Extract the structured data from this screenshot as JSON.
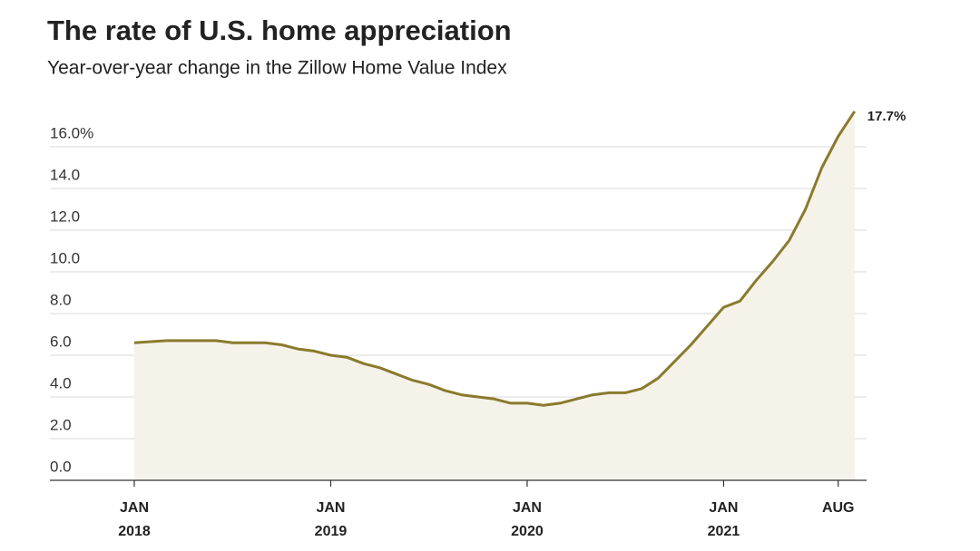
{
  "chart_data": {
    "type": "line",
    "title": "The rate of U.S. home appreciation",
    "subtitle": "Year-over-year change in the Zillow Home Value Index",
    "x": [
      "2018-01",
      "2018-02",
      "2018-03",
      "2018-04",
      "2018-05",
      "2018-06",
      "2018-07",
      "2018-08",
      "2018-09",
      "2018-10",
      "2018-11",
      "2018-12",
      "2019-01",
      "2019-02",
      "2019-03",
      "2019-04",
      "2019-05",
      "2019-06",
      "2019-07",
      "2019-08",
      "2019-09",
      "2019-10",
      "2019-11",
      "2019-12",
      "2020-01",
      "2020-02",
      "2020-03",
      "2020-04",
      "2020-05",
      "2020-06",
      "2020-07",
      "2020-08",
      "2020-09",
      "2020-10",
      "2020-11",
      "2020-12",
      "2021-01",
      "2021-02",
      "2021-03",
      "2021-04",
      "2021-05",
      "2021-06",
      "2021-07",
      "2021-08",
      "2021-09"
    ],
    "series": [
      {
        "name": "Zillow Home Value Index YoY",
        "color": "#8a7a2c",
        "values": [
          6.6,
          6.65,
          6.7,
          6.7,
          6.7,
          6.7,
          6.6,
          6.6,
          6.6,
          6.5,
          6.3,
          6.2,
          6.0,
          5.9,
          5.6,
          5.4,
          5.1,
          4.8,
          4.6,
          4.3,
          4.1,
          4.0,
          3.9,
          3.7,
          3.7,
          3.6,
          3.7,
          3.9,
          4.1,
          4.2,
          4.2,
          4.4,
          4.9,
          5.7,
          6.5,
          7.4,
          8.3,
          8.6,
          9.6,
          10.5,
          11.5,
          13.0,
          15.0,
          16.5,
          17.7
        ],
        "value_labels": [
          null,
          null,
          null,
          null,
          null,
          null,
          null,
          null,
          null,
          null,
          null,
          null,
          null,
          null,
          null,
          null,
          null,
          null,
          null,
          null,
          null,
          null,
          null,
          null,
          null,
          null,
          null,
          null,
          null,
          null,
          null,
          null,
          null,
          null,
          null,
          null,
          null,
          null,
          null,
          null,
          null,
          null,
          null,
          null,
          "17.7%"
        ]
      }
    ],
    "area_fill": "#f5f2ea",
    "ylim": [
      0,
      18
    ],
    "yticks": [
      {
        "value": 0,
        "label": "0.0"
      },
      {
        "value": 2,
        "label": "2.0"
      },
      {
        "value": 4,
        "label": "4.0"
      },
      {
        "value": 6,
        "label": "6.0"
      },
      {
        "value": 8,
        "label": "8.0"
      },
      {
        "value": 10,
        "label": "10.0"
      },
      {
        "value": 12,
        "label": "12.0"
      },
      {
        "value": 14,
        "label": "14.0"
      },
      {
        "value": 16,
        "label": "16.0%"
      }
    ],
    "xticks": [
      {
        "value": "2018-01",
        "label": [
          "JAN",
          "2018"
        ]
      },
      {
        "value": "2019-01",
        "label": [
          "JAN",
          "2019"
        ]
      },
      {
        "value": "2020-01",
        "label": [
          "JAN",
          "2020"
        ]
      },
      {
        "value": "2021-01",
        "label": [
          "JAN",
          "2021"
        ]
      },
      {
        "value": "2021-08",
        "label": [
          "AUG"
        ]
      }
    ],
    "grid": true
  }
}
